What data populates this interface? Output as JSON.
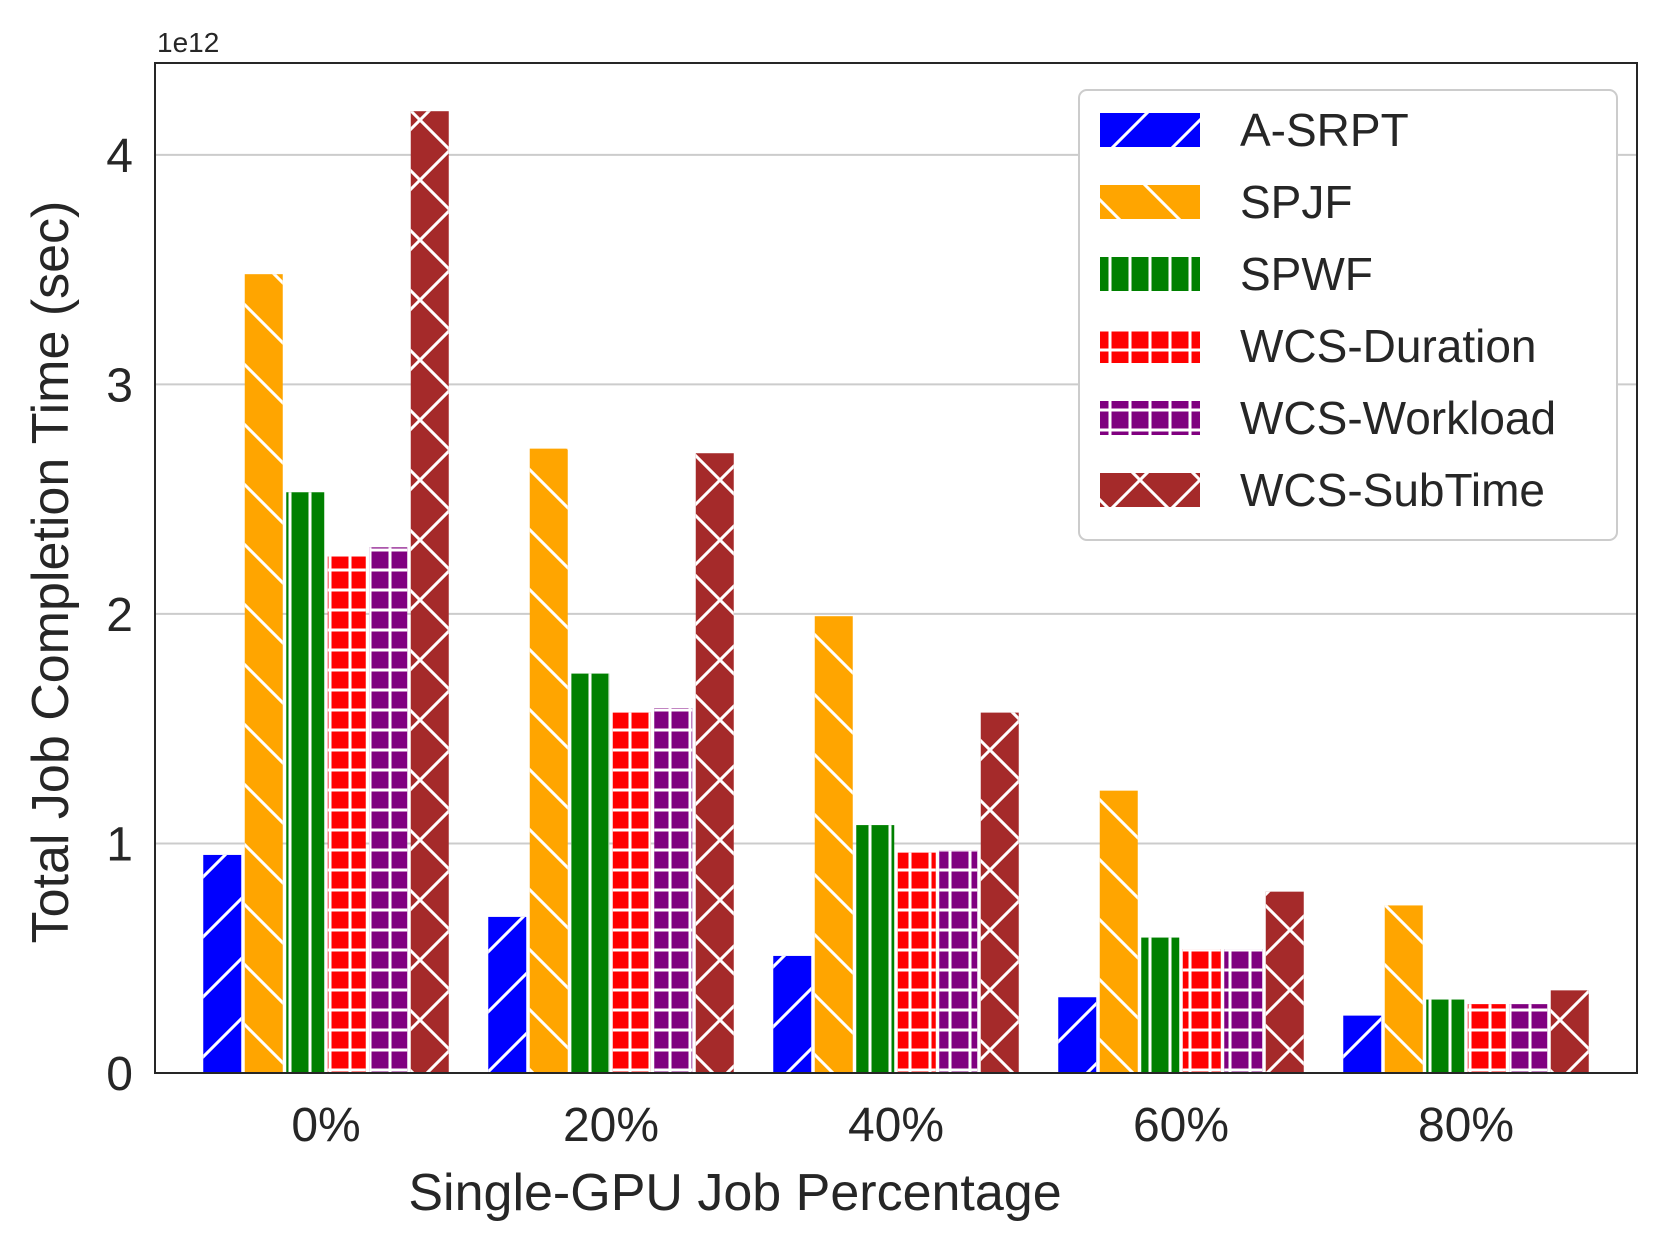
{
  "chart_data": {
    "type": "bar",
    "title": "",
    "xlabel": "Single-GPU Job Percentage",
    "ylabel": "Total Job Completion Time (sec)",
    "y_offset_label": "1e12",
    "ylim": [
      0,
      4.4
    ],
    "yticks": [
      0,
      1,
      2,
      3,
      4
    ],
    "ytick_labels": [
      "0",
      "1",
      "2",
      "3",
      "4"
    ],
    "grid": "horizontal",
    "legend_position": "top-right",
    "categories": [
      "0%",
      "20%",
      "40%",
      "60%",
      "80%"
    ],
    "series": [
      {
        "name": "A-SRPT",
        "color": "#0000ff",
        "hatch": "slash",
        "values": [
          0.95,
          0.68,
          0.51,
          0.33,
          0.25
        ]
      },
      {
        "name": "SPJF",
        "color": "#ffa500",
        "hatch": "backslash",
        "values": [
          3.48,
          2.72,
          1.99,
          1.23,
          0.73
        ]
      },
      {
        "name": "SPWF",
        "color": "#008000",
        "hatch": "vertical",
        "values": [
          2.53,
          1.74,
          1.08,
          0.59,
          0.32
        ]
      },
      {
        "name": "WCS-Duration",
        "color": "#ff0000",
        "hatch": "grid",
        "values": [
          2.25,
          1.57,
          0.96,
          0.54,
          0.3
        ]
      },
      {
        "name": "WCS-Workload",
        "color": "#800080",
        "hatch": "grid",
        "values": [
          2.29,
          1.59,
          0.97,
          0.54,
          0.3
        ]
      },
      {
        "name": "WCS-SubTime",
        "color": "#a52a2a",
        "hatch": "cross",
        "values": [
          4.19,
          2.7,
          1.57,
          0.79,
          0.36
        ]
      }
    ]
  }
}
